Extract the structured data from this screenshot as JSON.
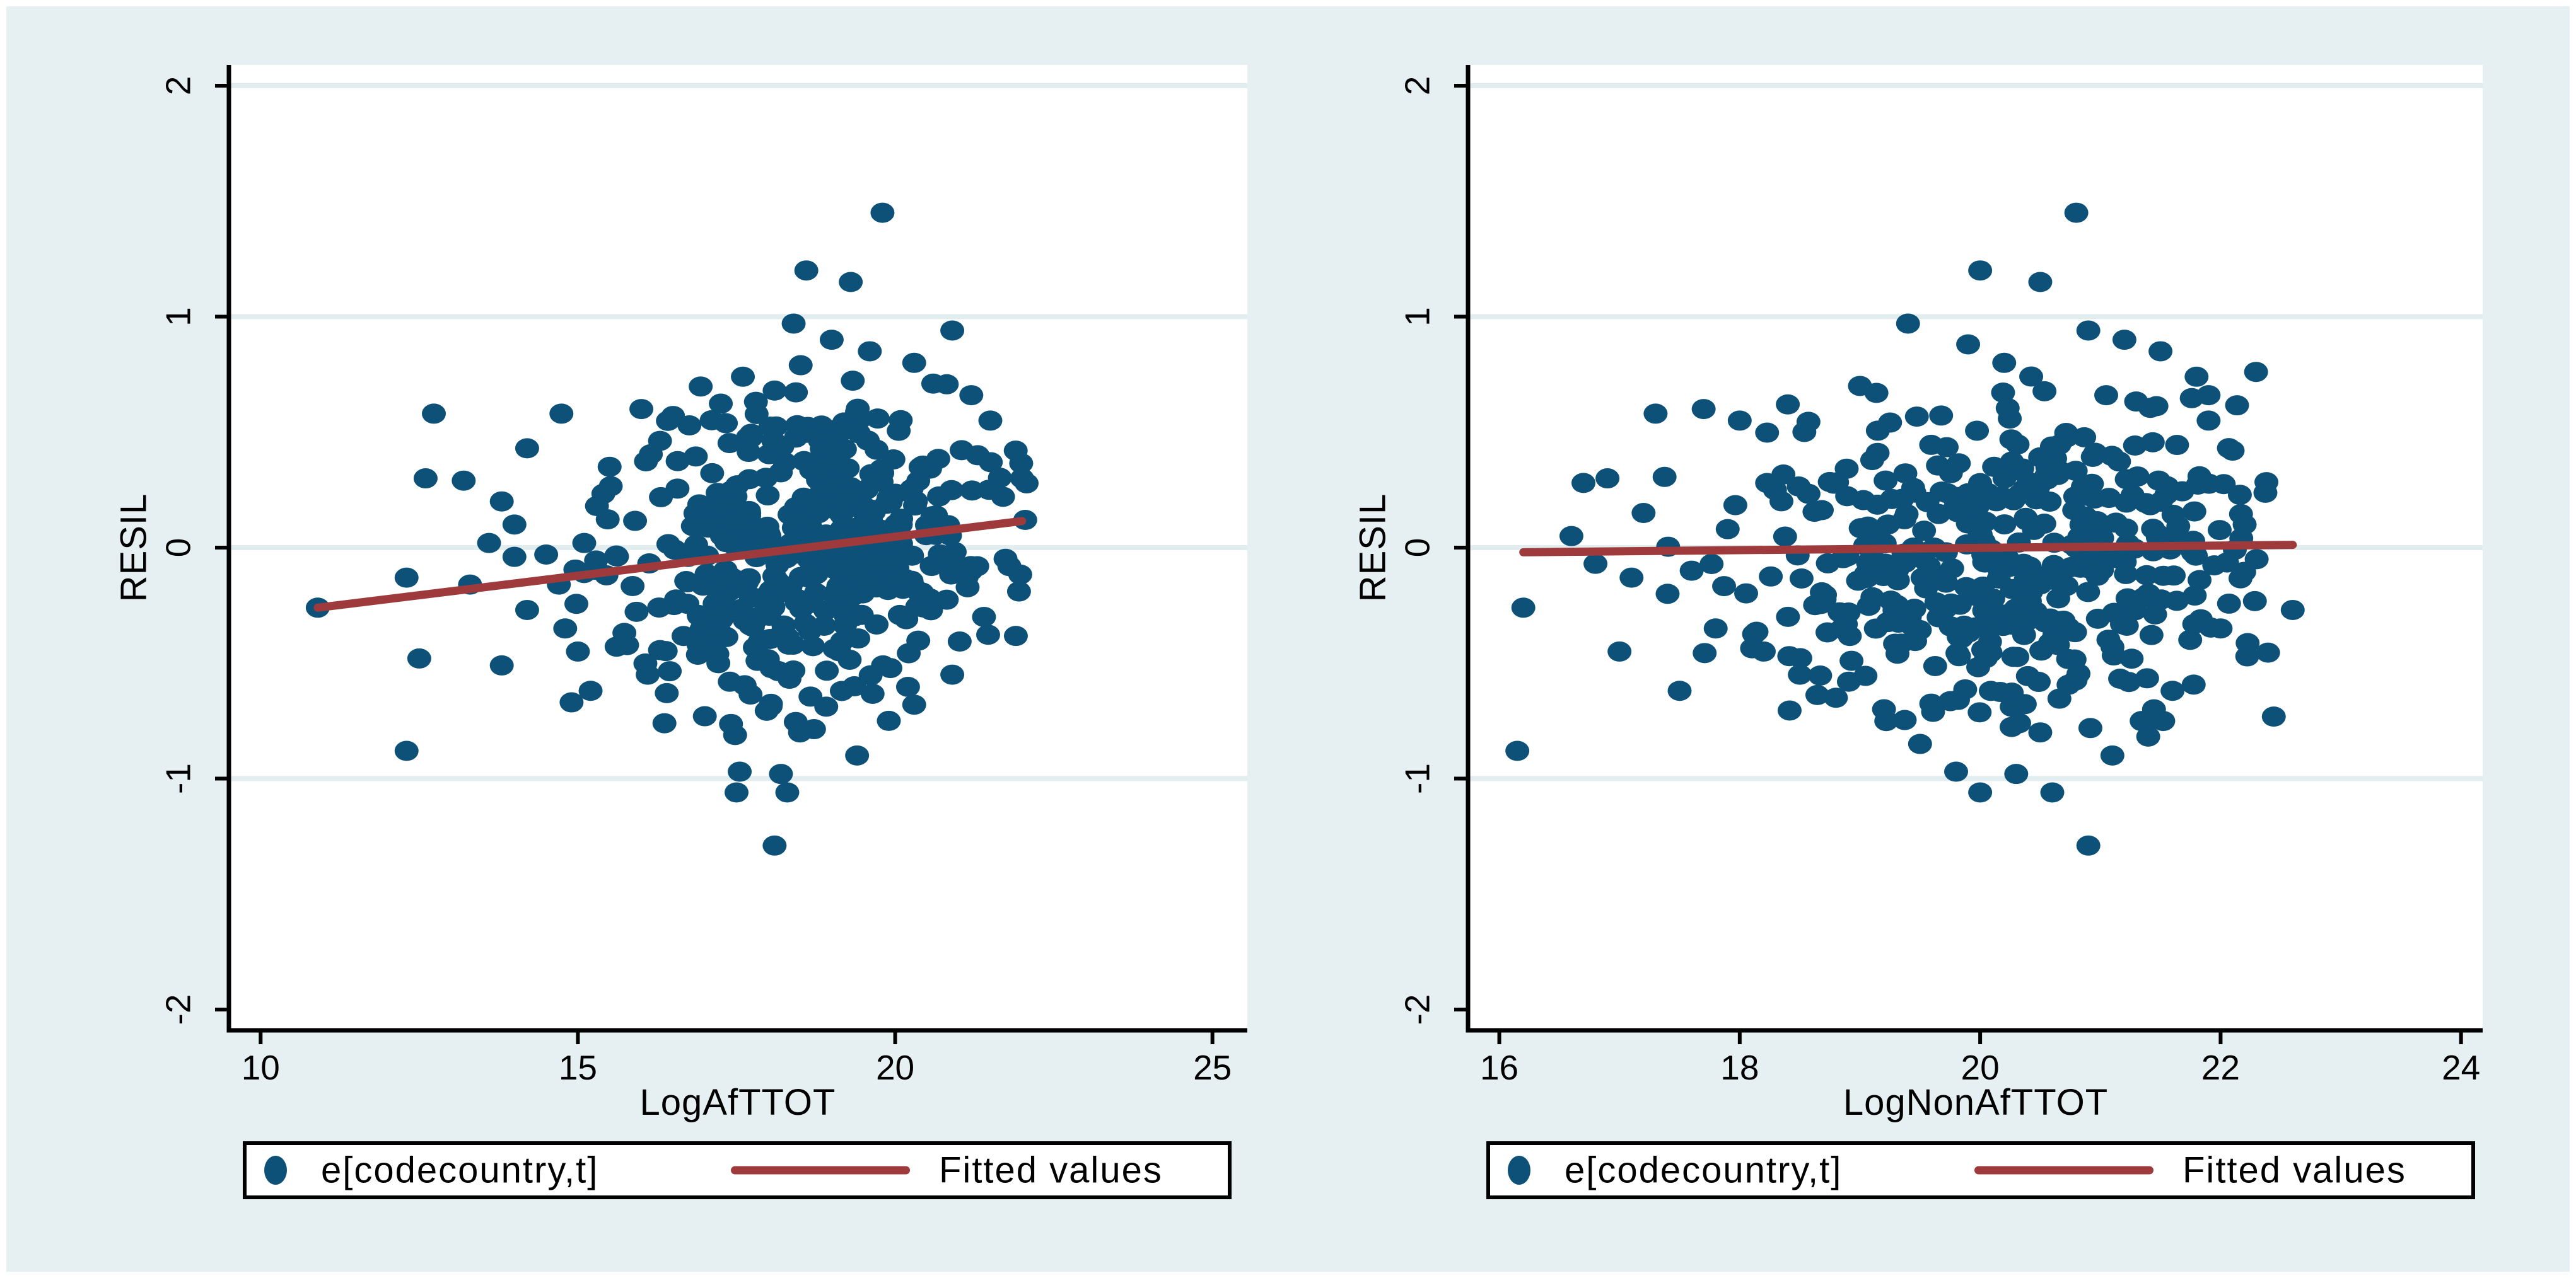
{
  "colors": {
    "background": "#e6f0f2",
    "plot_background": "#ffffff",
    "gridline": "#e2edf0",
    "axis": "#000000",
    "marker": "#0d5179",
    "fitted_line": "#9e3a3b",
    "legend_border": "#000000"
  },
  "legend": {
    "marker_label": "e[codecountry,t]",
    "line_label": "Fitted values"
  },
  "chart_data": [
    {
      "type": "scatter",
      "title": "",
      "xlabel": "LogAfTTOT",
      "ylabel": "RESIL",
      "xlim": [
        9.5,
        25.55
      ],
      "ylim": [
        -2.09,
        2.09
      ],
      "xticks": [
        10,
        15,
        20,
        25
      ],
      "yticks": [
        -2,
        -1,
        0,
        1,
        2
      ],
      "grid_y": [
        -1,
        0,
        1,
        2
      ],
      "legend_position": "bottom",
      "fit_line": {
        "x0": 10.9,
        "y0": -0.26,
        "x1": 22.0,
        "y1": 0.115
      },
      "scatter": {
        "outliers": [
          [
            10.9,
            -0.26
          ],
          [
            12.3,
            -0.88
          ],
          [
            12.73,
            0.58
          ],
          [
            12.6,
            0.3
          ],
          [
            13.2,
            0.29
          ],
          [
            12.3,
            -0.13
          ],
          [
            12.5,
            -0.48
          ],
          [
            13.3,
            -0.16
          ],
          [
            13.8,
            0.2
          ],
          [
            13.6,
            0.02
          ],
          [
            14.0,
            -0.04
          ],
          [
            14.2,
            0.43
          ],
          [
            14.74,
            0.58
          ],
          [
            14.0,
            0.1
          ],
          [
            13.8,
            -0.51
          ],
          [
            14.5,
            -0.03
          ],
          [
            14.7,
            -0.16
          ],
          [
            14.2,
            -0.27
          ],
          [
            14.8,
            -0.35
          ],
          [
            15.0,
            -0.45
          ],
          [
            14.9,
            -0.67
          ],
          [
            15.2,
            -0.62
          ],
          [
            15.3,
            0.18
          ],
          [
            15.1,
            0.02
          ],
          [
            15.45,
            -0.12
          ],
          [
            15.5,
            0.35
          ],
          [
            19.8,
            1.45
          ],
          [
            18.6,
            1.2
          ],
          [
            19.3,
            1.15
          ],
          [
            18.4,
            0.97
          ],
          [
            20.9,
            0.94
          ],
          [
            19.0,
            0.9
          ],
          [
            19.6,
            0.85
          ],
          [
            20.3,
            0.8
          ],
          [
            17.6,
            0.74
          ],
          [
            18.1,
            0.68
          ],
          [
            20.6,
            0.71
          ],
          [
            21.2,
            0.66
          ],
          [
            16.0,
            0.6
          ],
          [
            16.5,
            0.57
          ],
          [
            18.1,
            -1.29
          ],
          [
            17.5,
            -1.06
          ],
          [
            18.3,
            -1.06
          ],
          [
            17.55,
            -0.97
          ],
          [
            18.2,
            -0.98
          ],
          [
            19.4,
            -0.9
          ],
          [
            18.5,
            -0.8
          ],
          [
            16.4,
            -0.63
          ],
          [
            17.0,
            -0.73
          ],
          [
            16.1,
            -0.55
          ],
          [
            19.9,
            -0.75
          ],
          [
            20.3,
            -0.68
          ],
          [
            20.9,
            -0.55
          ],
          [
            16.9,
            -0.42
          ],
          [
            21.9,
            0.42
          ],
          [
            22.0,
            0.3
          ],
          [
            21.5,
            0.55
          ],
          [
            21.3,
            0.4
          ],
          [
            22.05,
            0.12
          ],
          [
            21.8,
            -0.08
          ],
          [
            21.4,
            -0.3
          ],
          [
            21.7,
            0.22
          ]
        ],
        "cluster": {
          "n": 430,
          "seed": 42,
          "x_mean": 18.55,
          "x_sd": 1.35,
          "x_min": 14.9,
          "x_max": 22.1,
          "y_sd": 0.33,
          "y_min": -0.82,
          "y_max": 0.8,
          "y_slope": 0.033,
          "x_ref": 18.5
        }
      }
    },
    {
      "type": "scatter",
      "title": "",
      "xlabel": "LogNonAfTTOT",
      "ylabel": "RESIL",
      "xlim": [
        15.74,
        24.18
      ],
      "ylim": [
        -2.09,
        2.09
      ],
      "xticks": [
        16,
        18,
        20,
        22,
        24
      ],
      "yticks": [
        -2,
        -1,
        0,
        1,
        2
      ],
      "grid_y": [
        -1,
        0,
        1,
        2
      ],
      "legend_position": "bottom",
      "fit_line": {
        "x0": 16.2,
        "y0": -0.02,
        "x1": 22.6,
        "y1": 0.012
      },
      "scatter": {
        "outliers": [
          [
            16.2,
            -0.26
          ],
          [
            16.15,
            -0.88
          ],
          [
            16.7,
            0.28
          ],
          [
            16.9,
            0.3
          ],
          [
            17.1,
            -0.13
          ],
          [
            17.3,
            0.58
          ],
          [
            17.0,
            -0.45
          ],
          [
            17.7,
            0.6
          ],
          [
            17.5,
            -0.62
          ],
          [
            17.8,
            -0.35
          ],
          [
            16.6,
            0.05
          ],
          [
            16.8,
            -0.07
          ],
          [
            17.2,
            0.15
          ],
          [
            17.4,
            -0.2
          ],
          [
            17.9,
            0.08
          ],
          [
            17.6,
            -0.1
          ],
          [
            20.8,
            1.45
          ],
          [
            20.0,
            1.2
          ],
          [
            20.5,
            1.15
          ],
          [
            19.4,
            0.97
          ],
          [
            20.9,
            0.94
          ],
          [
            21.2,
            0.9
          ],
          [
            21.5,
            0.85
          ],
          [
            19.9,
            0.88
          ],
          [
            20.2,
            0.8
          ],
          [
            21.8,
            0.74
          ],
          [
            19.0,
            0.7
          ],
          [
            18.4,
            0.62
          ],
          [
            21.9,
            0.66
          ],
          [
            18.0,
            0.55
          ],
          [
            20.9,
            -1.29
          ],
          [
            20.0,
            -1.06
          ],
          [
            20.6,
            -1.06
          ],
          [
            19.8,
            -0.97
          ],
          [
            20.3,
            -0.98
          ],
          [
            21.1,
            -0.9
          ],
          [
            20.5,
            -0.8
          ],
          [
            19.2,
            -0.7
          ],
          [
            18.8,
            -0.65
          ],
          [
            18.5,
            -0.55
          ],
          [
            21.4,
            -0.75
          ],
          [
            21.6,
            -0.62
          ],
          [
            19.5,
            -0.85
          ],
          [
            18.2,
            -0.45
          ],
          [
            22.6,
            -0.27
          ],
          [
            22.1,
            0.42
          ],
          [
            22.2,
            0.1
          ],
          [
            21.9,
            0.55
          ],
          [
            22.3,
            -0.05
          ],
          [
            22.0,
            -0.35
          ]
        ],
        "cluster": {
          "n": 430,
          "seed": 1337,
          "x_mean": 20.35,
          "x_sd": 1.05,
          "x_min": 16.6,
          "x_max": 22.45,
          "y_sd": 0.33,
          "y_min": -0.82,
          "y_max": 0.8,
          "y_slope": 0.005,
          "x_ref": 20.0
        }
      }
    }
  ]
}
